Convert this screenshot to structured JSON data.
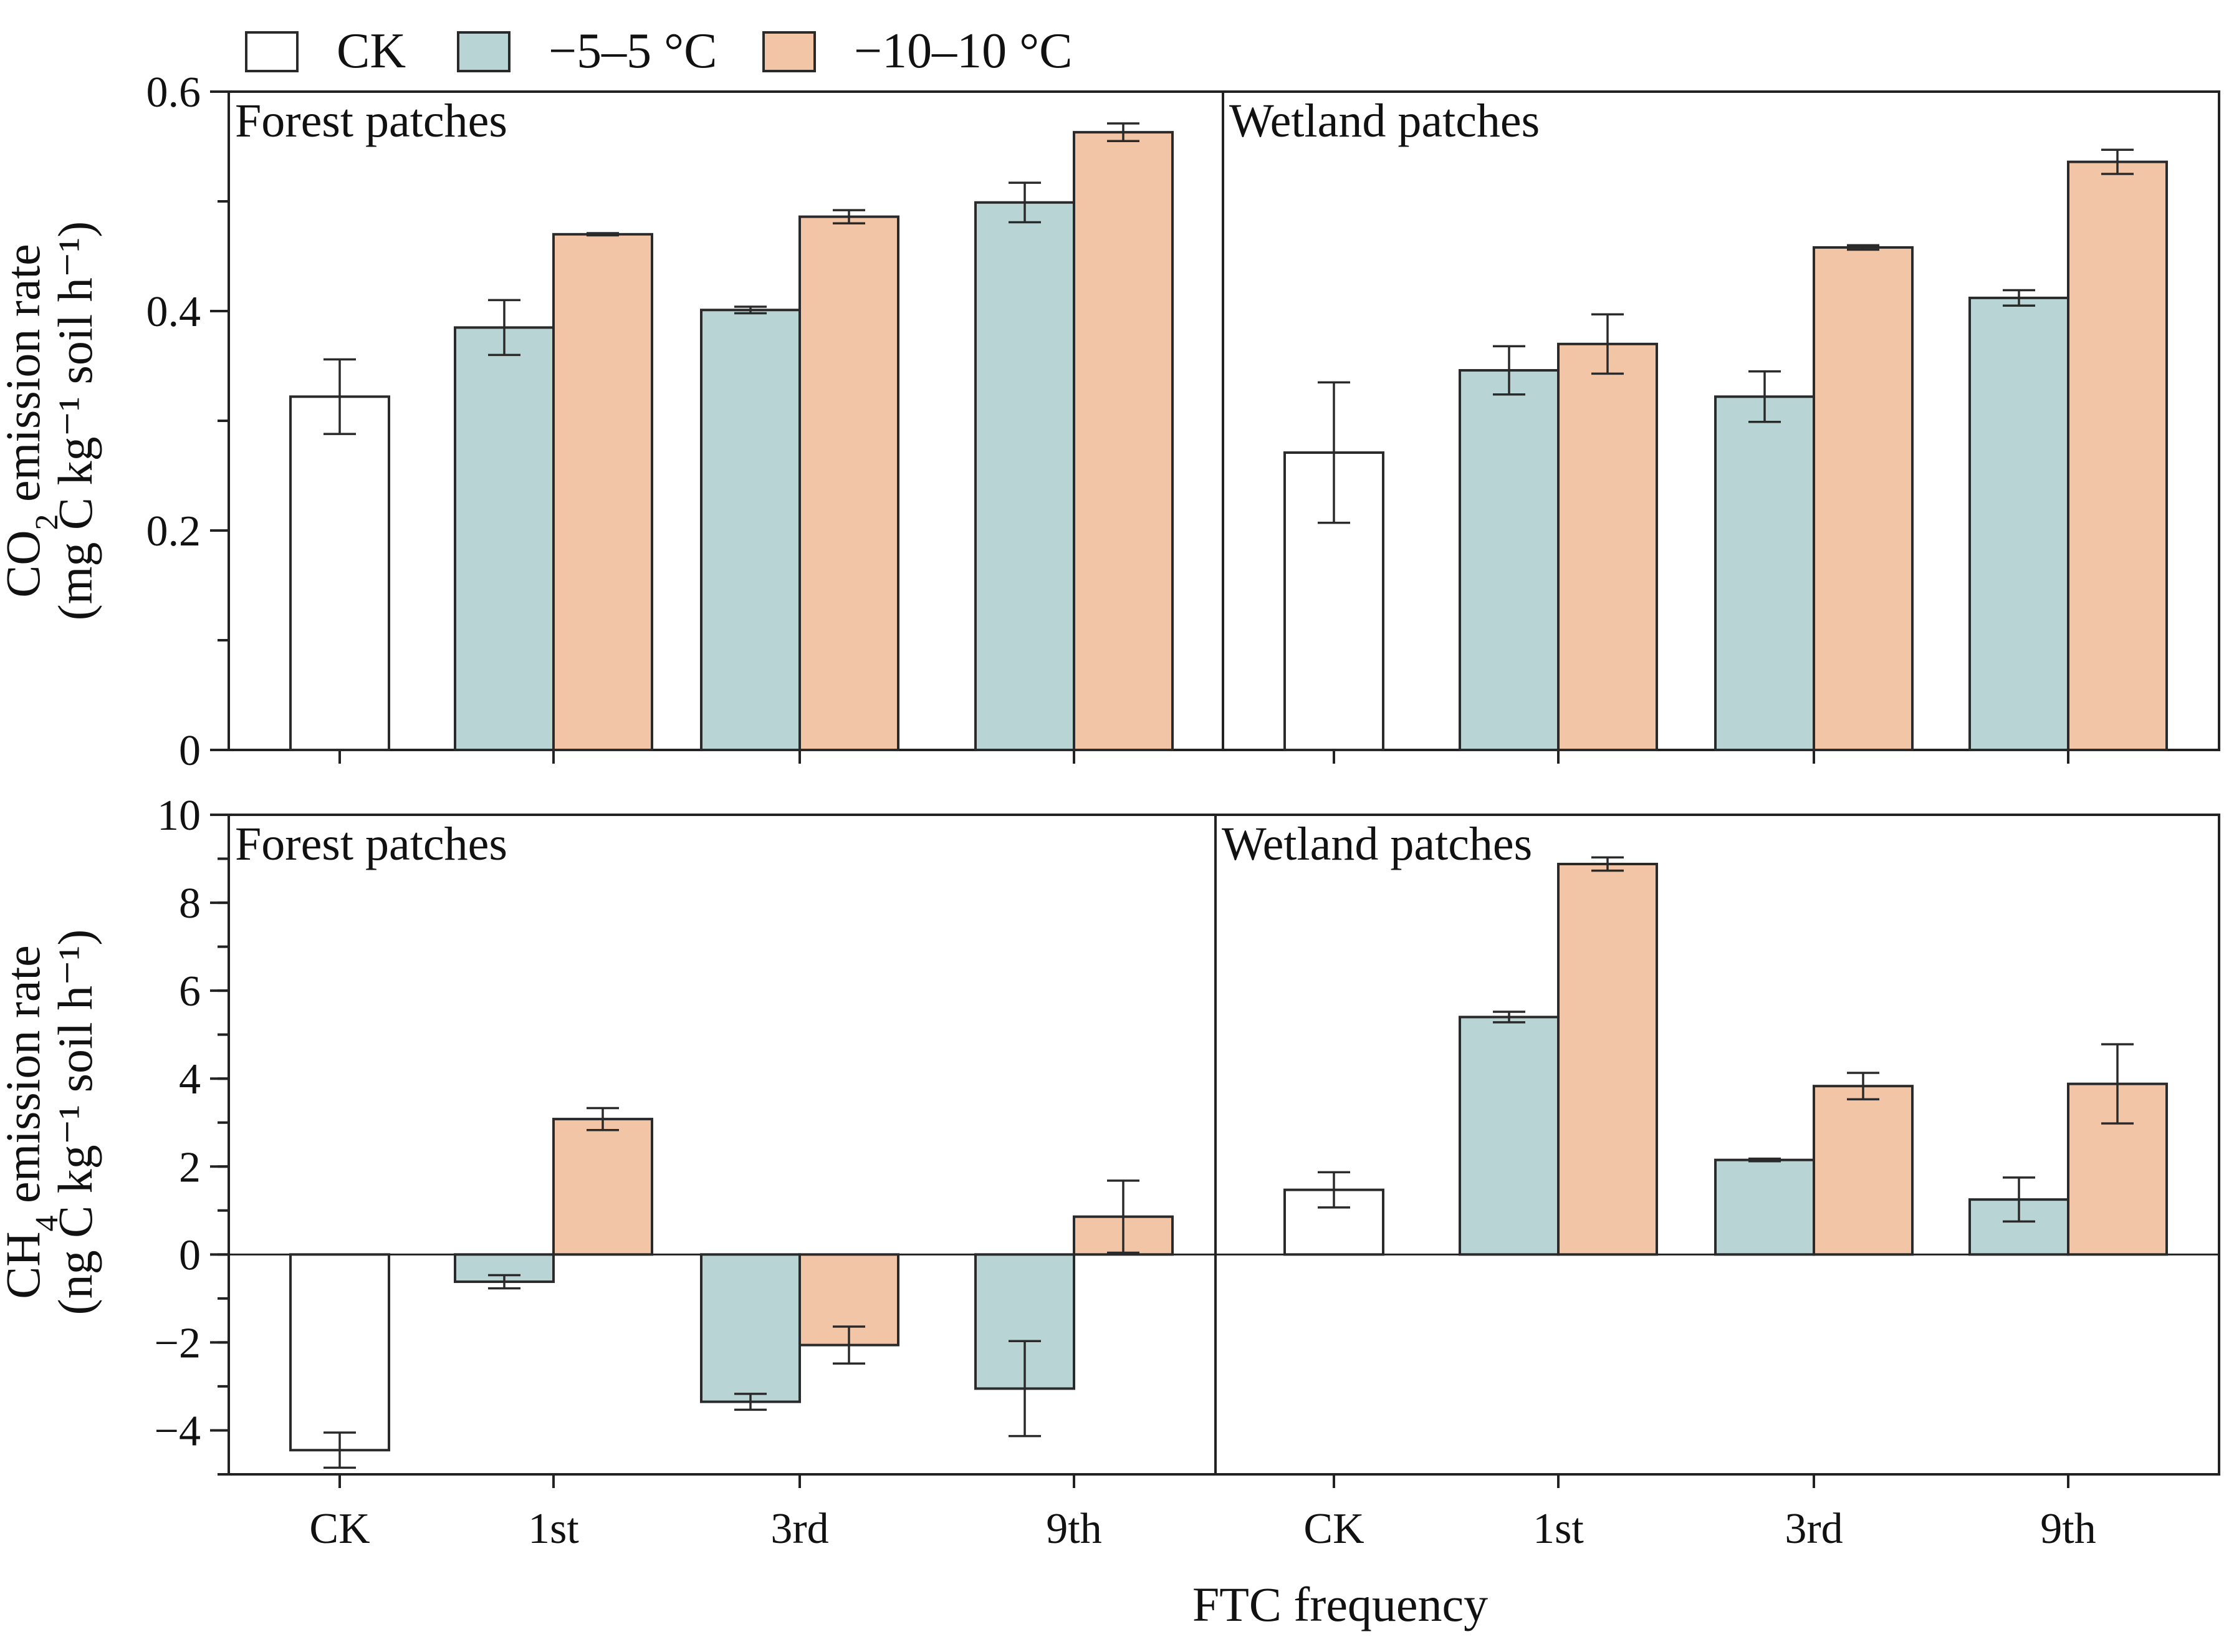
{
  "colors": {
    "CK": "#ffffff",
    "m5": "#b9d4d4",
    "m10": "#f1c5a6",
    "stroke": "#2a2a2a"
  },
  "legend": [
    {
      "key": "CK",
      "label": "CK"
    },
    {
      "key": "m5",
      "label": "−5–5 °C"
    },
    {
      "key": "m10",
      "label": "−10–10 °C"
    }
  ],
  "xlabel": "FTC frequency",
  "chart_data": [
    {
      "type": "bar",
      "id": "co2",
      "ylabel_line1_prefix": "CO",
      "ylabel_line1_sub": "2",
      "ylabel_line1_suffix": " emission rate",
      "ylabel_line2": "(mg C kg⁻¹ soil h⁻¹)",
      "ylim": [
        0,
        0.6
      ],
      "yticks": [
        0,
        0.2,
        0.4,
        0.6
      ],
      "ytick_labels": [
        "0",
        "0.2",
        "0.4",
        "0.6"
      ],
      "panels": [
        {
          "label": "Forest patches",
          "categories": [
            "CK",
            "1st",
            "3rd",
            "9th"
          ],
          "bars": [
            {
              "category": "CK",
              "series": "CK",
              "value": 0.322,
              "err": 0.034
            },
            {
              "category": "1st",
              "series": "m5",
              "value": 0.385,
              "err": 0.025
            },
            {
              "category": "1st",
              "series": "m10",
              "value": 0.47,
              "err": 0.001
            },
            {
              "category": "3rd",
              "series": "m5",
              "value": 0.401,
              "err": 0.003
            },
            {
              "category": "3rd",
              "series": "m10",
              "value": 0.486,
              "err": 0.006
            },
            {
              "category": "9th",
              "series": "m5",
              "value": 0.499,
              "err": 0.018
            },
            {
              "category": "9th",
              "series": "m10",
              "value": 0.563,
              "err": 0.008
            }
          ]
        },
        {
          "label": "Wetland patches",
          "categories": [
            "CK",
            "1st",
            "3rd",
            "9th"
          ],
          "bars": [
            {
              "category": "CK",
              "series": "CK",
              "value": 0.271,
              "err": 0.064
            },
            {
              "category": "1st",
              "series": "m5",
              "value": 0.346,
              "err": 0.022
            },
            {
              "category": "1st",
              "series": "m10",
              "value": 0.37,
              "err": 0.027
            },
            {
              "category": "3rd",
              "series": "m5",
              "value": 0.322,
              "err": 0.023
            },
            {
              "category": "3rd",
              "series": "m10",
              "value": 0.458,
              "err": 0.002
            },
            {
              "category": "9th",
              "series": "m5",
              "value": 0.412,
              "err": 0.007
            },
            {
              "category": "9th",
              "series": "m10",
              "value": 0.536,
              "err": 0.011
            }
          ]
        }
      ]
    },
    {
      "type": "bar",
      "id": "ch4",
      "ylabel_line1_prefix": "CH",
      "ylabel_line1_sub": "4",
      "ylabel_line1_suffix": " emission rate",
      "ylabel_line2": "(ng C kg⁻¹ soil h⁻¹)",
      "ylim": [
        -5,
        10
      ],
      "yticks": [
        -4,
        -2,
        0,
        2,
        4,
        6,
        8,
        10
      ],
      "ytick_labels": [
        "−4",
        "−2",
        "0",
        "2",
        "4",
        "6",
        "8",
        "10"
      ],
      "panels": [
        {
          "label": "Forest patches",
          "categories": [
            "CK",
            "1st",
            "3rd",
            "9th"
          ],
          "bars": [
            {
              "category": "CK",
              "series": "CK",
              "value": -4.45,
              "err": 0.4
            },
            {
              "category": "1st",
              "series": "m5",
              "value": -0.62,
              "err": 0.15
            },
            {
              "category": "1st",
              "series": "m10",
              "value": 3.08,
              "err": 0.25
            },
            {
              "category": "3rd",
              "series": "m5",
              "value": -3.35,
              "err": 0.18
            },
            {
              "category": "3rd",
              "series": "m10",
              "value": -2.06,
              "err": 0.42
            },
            {
              "category": "9th",
              "series": "m5",
              "value": -3.05,
              "err": 1.08
            },
            {
              "category": "9th",
              "series": "m10",
              "value": 0.86,
              "err": 0.82
            }
          ]
        },
        {
          "label": "Wetland patches",
          "categories": [
            "CK",
            "1st",
            "3rd",
            "9th"
          ],
          "bars": [
            {
              "category": "CK",
              "series": "CK",
              "value": 1.47,
              "err": 0.4
            },
            {
              "category": "1st",
              "series": "m5",
              "value": 5.4,
              "err": 0.12
            },
            {
              "category": "1st",
              "series": "m10",
              "value": 8.88,
              "err": 0.15
            },
            {
              "category": "3rd",
              "series": "m5",
              "value": 2.15,
              "err": 0.03
            },
            {
              "category": "3rd",
              "series": "m10",
              "value": 3.83,
              "err": 0.3
            },
            {
              "category": "9th",
              "series": "m5",
              "value": 1.25,
              "err": 0.5
            },
            {
              "category": "9th",
              "series": "m10",
              "value": 3.88,
              "err": 0.9
            }
          ]
        }
      ]
    }
  ]
}
